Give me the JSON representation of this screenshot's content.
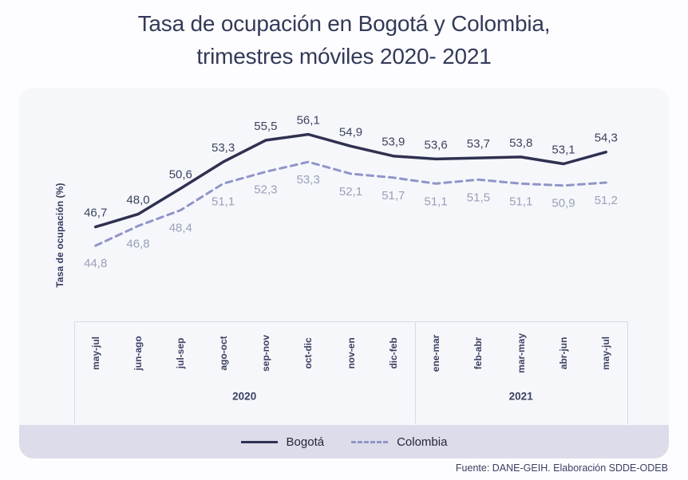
{
  "title": {
    "line1": "Tasa de ocupación en Bogotá y Colombia,",
    "line2": "trimestres móviles 2020- 2021"
  },
  "chart_data": {
    "type": "line",
    "title": "Tasa de ocupación en Bogotá y Colombia, trimestres móviles 2020- 2021",
    "ylabel": "Tasa de ocupación (%)",
    "xlabel": "",
    "ylim": [
      44,
      58
    ],
    "grid": false,
    "legend_position": "bottom",
    "decimal_separator": ",",
    "categories": [
      "may-jul",
      "jun-ago",
      "jul-sep",
      "ago-oct",
      "sep-nov",
      "oct-dic",
      "nov-en",
      "dic-feb",
      "ene-mar",
      "feb-abr",
      "mar-may",
      "abr-jun",
      "may-jul"
    ],
    "year_groups": [
      {
        "label": "2020",
        "count": 8
      },
      {
        "label": "2021",
        "count": 5
      }
    ],
    "series": [
      {
        "name": "Bogotá",
        "style": "solid",
        "color": "#2e3150",
        "label_color": "#3b445f",
        "values": [
          46.7,
          48.0,
          50.6,
          53.3,
          55.5,
          56.1,
          54.9,
          53.9,
          53.6,
          53.7,
          53.8,
          53.1,
          54.3
        ]
      },
      {
        "name": "Colombia",
        "style": "dashed",
        "color": "#9095c8",
        "label_color": "#98a1b8",
        "values": [
          44.8,
          46.8,
          48.4,
          51.1,
          52.3,
          53.3,
          52.1,
          51.7,
          51.1,
          51.5,
          51.1,
          50.9,
          51.2
        ]
      }
    ]
  },
  "footer": {
    "source": "Fuente: DANE-GEIH. Elaboración SDDE-ODEB"
  }
}
